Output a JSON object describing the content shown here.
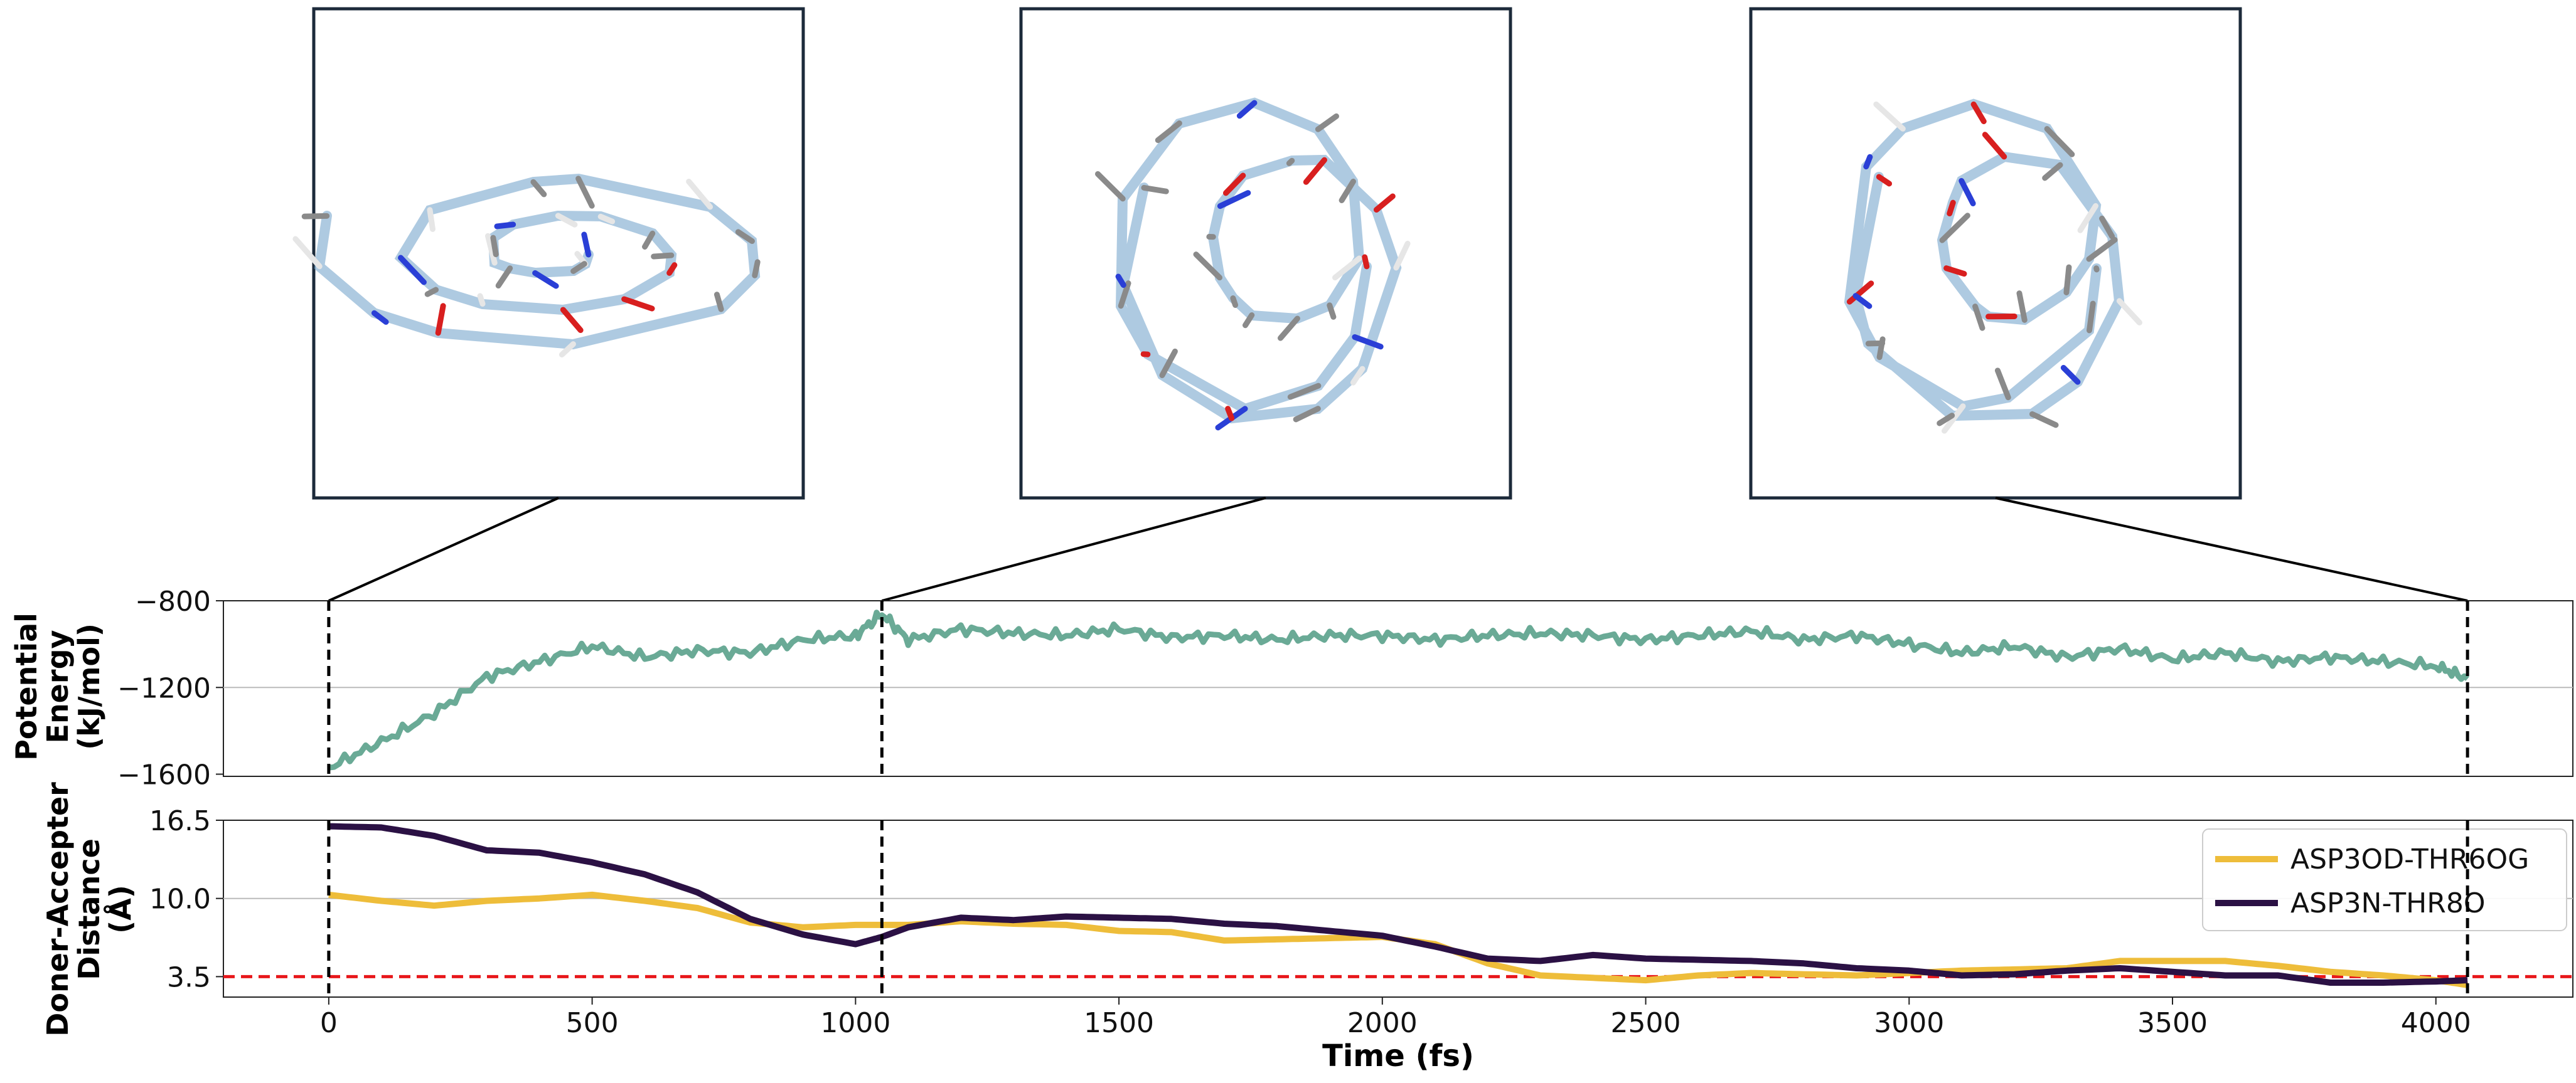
{
  "chart_data": [
    {
      "type": "line",
      "panel": "energy",
      "ylabel_lines": [
        "Potential",
        "Energy",
        "(kJ/mol)"
      ],
      "yticks": [
        -800,
        -1200,
        -1600
      ],
      "ylim": [
        -1610,
        -800
      ],
      "xlim": [
        -200,
        4260
      ],
      "grid_y": [
        -1200
      ],
      "series": [
        {
          "color": "#6aaa96",
          "x": [
            0,
            100,
            200,
            300,
            400,
            500,
            600,
            700,
            800,
            900,
            1000,
            1050,
            1100,
            1200,
            1300,
            1400,
            1500,
            1600,
            1700,
            1800,
            1900,
            2000,
            2100,
            2200,
            2300,
            2400,
            2500,
            2600,
            2700,
            2800,
            2900,
            3000,
            3100,
            3200,
            3300,
            3400,
            3500,
            3600,
            3700,
            3800,
            3900,
            4000,
            4060
          ],
          "y": [
            -1570,
            -1450,
            -1320,
            -1150,
            -1080,
            -1010,
            -1060,
            -1030,
            -1040,
            -980,
            -960,
            -860,
            -980,
            -930,
            -950,
            -960,
            -930,
            -970,
            -960,
            -980,
            -960,
            -960,
            -980,
            -960,
            -950,
            -960,
            -980,
            -960,
            -940,
            -980,
            -960,
            -1000,
            -1040,
            -1010,
            -1060,
            -1020,
            -1070,
            -1040,
            -1080,
            -1060,
            -1080,
            -1100,
            -1160
          ]
        }
      ]
    },
    {
      "type": "line",
      "panel": "distance",
      "ylabel_lines": [
        "Doner-Accepter",
        "Distance",
        "(Å)"
      ],
      "yticks": [
        16.5,
        10.0,
        3.5
      ],
      "ylim": [
        1.8,
        16.5
      ],
      "xlim": [
        -200,
        4260
      ],
      "xticks": [
        0,
        500,
        1000,
        1500,
        2000,
        2500,
        3000,
        3500,
        4000
      ],
      "xlabel": "Time (fs)",
      "grid_y": [
        10.0
      ],
      "threshold": {
        "y": 3.5,
        "color": "#e8171b"
      },
      "series": [
        {
          "name": "ASP3OD-THR6OG",
          "color": "#eebd3a",
          "x": [
            0,
            100,
            200,
            300,
            400,
            500,
            600,
            700,
            800,
            900,
            1000,
            1100,
            1200,
            1300,
            1400,
            1500,
            1600,
            1700,
            1800,
            1900,
            2000,
            2100,
            2200,
            2300,
            2400,
            2500,
            2600,
            2700,
            2800,
            2900,
            3000,
            3100,
            3200,
            3300,
            3400,
            3500,
            3600,
            3700,
            3800,
            3900,
            4000,
            4060
          ],
          "y": [
            10.3,
            9.8,
            9.4,
            9.8,
            10.0,
            10.3,
            9.8,
            9.2,
            8.0,
            7.6,
            7.8,
            7.8,
            8.1,
            7.9,
            7.8,
            7.3,
            7.2,
            6.5,
            6.6,
            6.7,
            6.8,
            6.2,
            4.6,
            3.6,
            3.4,
            3.2,
            3.6,
            3.8,
            3.7,
            3.6,
            3.8,
            4.0,
            4.1,
            4.2,
            4.8,
            4.8,
            4.8,
            4.4,
            3.9,
            3.6,
            3.2,
            2.8
          ]
        },
        {
          "name": "ASP3N-THR8O",
          "color": "#2b1144",
          "x": [
            0,
            100,
            200,
            300,
            400,
            500,
            600,
            700,
            800,
            900,
            1000,
            1050,
            1100,
            1200,
            1300,
            1400,
            1500,
            1600,
            1700,
            1800,
            1900,
            2000,
            2100,
            2200,
            2300,
            2400,
            2500,
            2600,
            2700,
            2800,
            2900,
            3000,
            3100,
            3200,
            3300,
            3400,
            3500,
            3600,
            3700,
            3800,
            3900,
            4000,
            4060
          ],
          "y": [
            16.0,
            15.9,
            15.2,
            14.0,
            13.8,
            13.0,
            12.0,
            10.5,
            8.3,
            7.0,
            6.2,
            6.8,
            7.6,
            8.4,
            8.2,
            8.5,
            8.4,
            8.3,
            7.9,
            7.7,
            7.3,
            6.9,
            6.0,
            5.0,
            4.8,
            5.3,
            5.0,
            4.9,
            4.8,
            4.6,
            4.2,
            4.0,
            3.6,
            3.7,
            4.0,
            4.2,
            3.9,
            3.6,
            3.6,
            3.0,
            3.0,
            3.1,
            3.2
          ]
        }
      ],
      "legend_placement": "upper-right"
    }
  ],
  "markers": {
    "times": [
      0,
      1050,
      4060
    ],
    "color": "#000000",
    "style": "dashed"
  },
  "snapshots": [
    {
      "time": 0,
      "label": "snapshot-extended"
    },
    {
      "time": 1050,
      "label": "snapshot-partially-folded"
    },
    {
      "time": 4060,
      "label": "snapshot-folded"
    }
  ]
}
